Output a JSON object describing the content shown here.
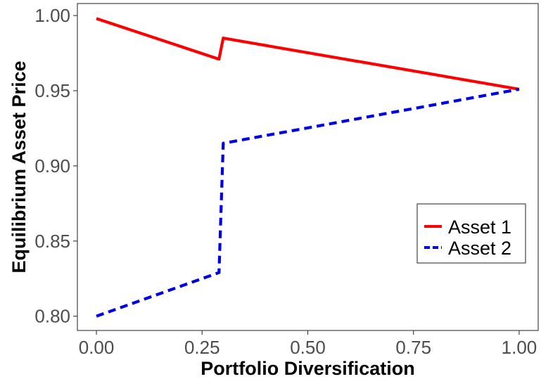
{
  "chart_data": {
    "type": "line",
    "title": "",
    "xlabel": "Portfolio Diversification",
    "ylabel": "Equilibrium Asset Price",
    "xlim": [
      -0.045,
      1.045
    ],
    "ylim": [
      0.7905,
      1.008
    ],
    "x_ticks": [
      0.0,
      0.25,
      0.5,
      0.75,
      1.0
    ],
    "x_tick_labels": [
      "0.00",
      "0.25",
      "0.50",
      "0.75",
      "1.00"
    ],
    "y_ticks": [
      0.8,
      0.85,
      0.9,
      0.95,
      1.0
    ],
    "y_tick_labels": [
      "0.80",
      "0.85",
      "0.90",
      "0.95",
      "1.00"
    ],
    "grid": false,
    "legend_position": "right",
    "series": [
      {
        "name": "Asset 1",
        "color": "#ff0000",
        "line_style": "solid",
        "x": [
          0.0,
          0.29,
          0.3,
          1.0
        ],
        "y": [
          0.998,
          0.971,
          0.985,
          0.951
        ]
      },
      {
        "name": "Asset 2",
        "color": "#0000e6",
        "line_style": "dashed",
        "x": [
          0.0,
          0.29,
          0.3,
          1.0
        ],
        "y": [
          0.8,
          0.829,
          0.915,
          0.951
        ]
      }
    ]
  }
}
